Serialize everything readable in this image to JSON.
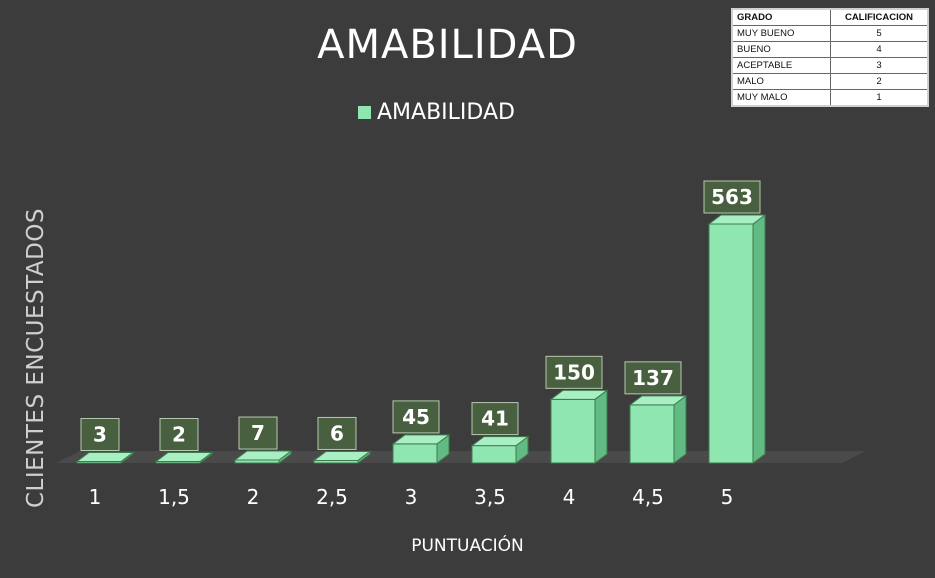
{
  "chart_data": {
    "type": "bar",
    "title": "AMABILIDAD",
    "legend": [
      "AMABILIDAD"
    ],
    "legend_position": "top",
    "xlabel": "PUNTUACIÓN",
    "ylabel": "CLIENTES ENCUESTADOS",
    "categories": [
      "1",
      "1,5",
      "2",
      "2,5",
      "3",
      "3,5",
      "4",
      "4,5",
      "5"
    ],
    "series": [
      {
        "name": "AMABILIDAD",
        "values": [
          3,
          2,
          7,
          6,
          45,
          41,
          150,
          137,
          563
        ]
      }
    ],
    "ylim": [
      0,
      563
    ],
    "grid": false,
    "bar_color": "#8fe6b0",
    "label_bg": "#48603f"
  },
  "ref_table": {
    "headers": [
      "GRADO",
      "CALIFICACION"
    ],
    "rows": [
      [
        "MUY BUENO",
        "5"
      ],
      [
        "BUENO",
        "4"
      ],
      [
        "ACEPTABLE",
        "3"
      ],
      [
        "MALO",
        "2"
      ],
      [
        "MUY MALO",
        "1"
      ]
    ]
  }
}
